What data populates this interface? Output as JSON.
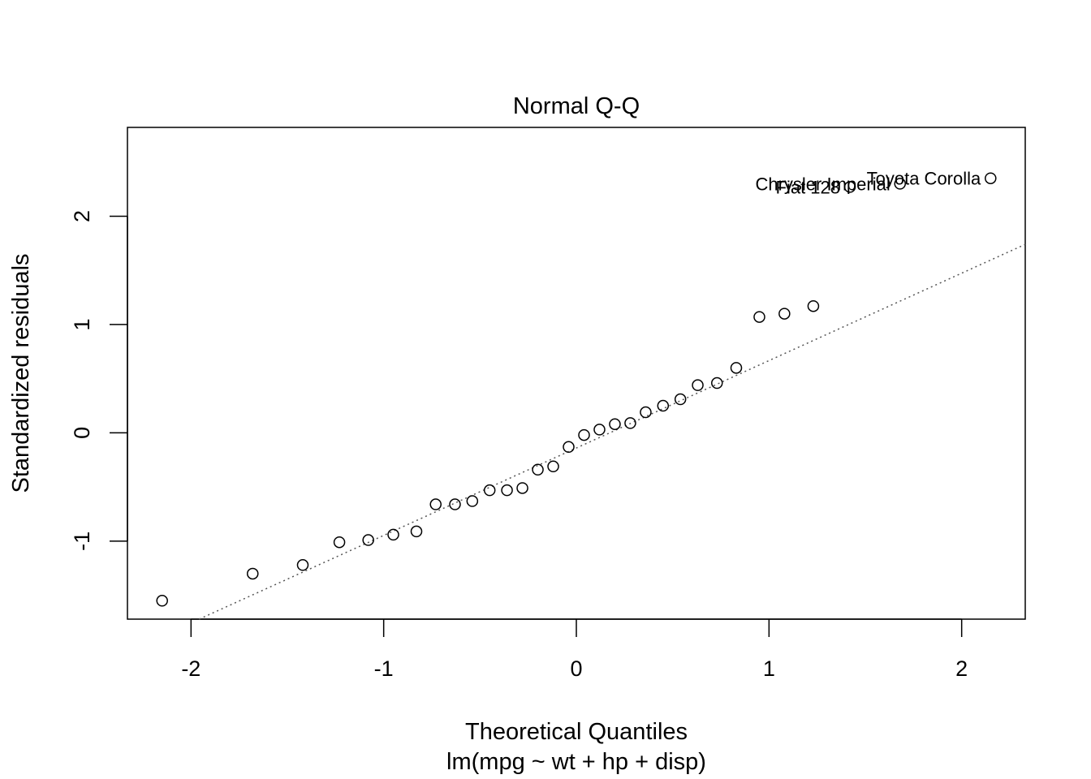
{
  "chart_data": {
    "type": "scatter",
    "title": "Normal Q-Q",
    "xlabel": "Theoretical Quantiles",
    "subtitle": "lm(mpg ~ wt + hp + disp)",
    "ylabel": "Standardized residuals",
    "xlim": [
      -2.33,
      2.33
    ],
    "ylim": [
      -1.72,
      2.82
    ],
    "xticks": [
      -2,
      -1,
      0,
      1,
      2
    ],
    "yticks": [
      -1,
      0,
      1,
      2
    ],
    "grid": false,
    "reference_line": {
      "slope": 0.807,
      "intercept": -0.14,
      "style": "dotted"
    },
    "points": [
      {
        "x": -2.15,
        "y": -1.55
      },
      {
        "x": -1.68,
        "y": -1.3
      },
      {
        "x": -1.42,
        "y": -1.22
      },
      {
        "x": -1.23,
        "y": -1.01
      },
      {
        "x": -1.08,
        "y": -0.99
      },
      {
        "x": -0.95,
        "y": -0.94
      },
      {
        "x": -0.83,
        "y": -0.91
      },
      {
        "x": -0.73,
        "y": -0.66
      },
      {
        "x": -0.63,
        "y": -0.66
      },
      {
        "x": -0.54,
        "y": -0.63
      },
      {
        "x": -0.45,
        "y": -0.53
      },
      {
        "x": -0.36,
        "y": -0.53
      },
      {
        "x": -0.28,
        "y": -0.51
      },
      {
        "x": -0.2,
        "y": -0.34
      },
      {
        "x": -0.12,
        "y": -0.31
      },
      {
        "x": -0.04,
        "y": -0.13
      },
      {
        "x": 0.04,
        "y": -0.02
      },
      {
        "x": 0.12,
        "y": 0.03
      },
      {
        "x": 0.2,
        "y": 0.08
      },
      {
        "x": 0.28,
        "y": 0.09
      },
      {
        "x": 0.36,
        "y": 0.19
      },
      {
        "x": 0.45,
        "y": 0.25
      },
      {
        "x": 0.54,
        "y": 0.31
      },
      {
        "x": 0.63,
        "y": 0.44
      },
      {
        "x": 0.73,
        "y": 0.46
      },
      {
        "x": 0.83,
        "y": 0.6
      },
      {
        "x": 0.95,
        "y": 1.07
      },
      {
        "x": 1.08,
        "y": 1.1
      },
      {
        "x": 1.23,
        "y": 1.17
      },
      {
        "x": 1.42,
        "y": 2.27
      },
      {
        "x": 1.68,
        "y": 2.3
      },
      {
        "x": 2.15,
        "y": 2.35
      }
    ],
    "labels": [
      {
        "text": "Fiat 128",
        "x": 1.42,
        "y": 2.27
      },
      {
        "text": "Chrysler Imperial",
        "x": 1.68,
        "y": 2.3
      },
      {
        "text": "Toyota Corolla",
        "x": 2.15,
        "y": 2.35
      }
    ]
  }
}
